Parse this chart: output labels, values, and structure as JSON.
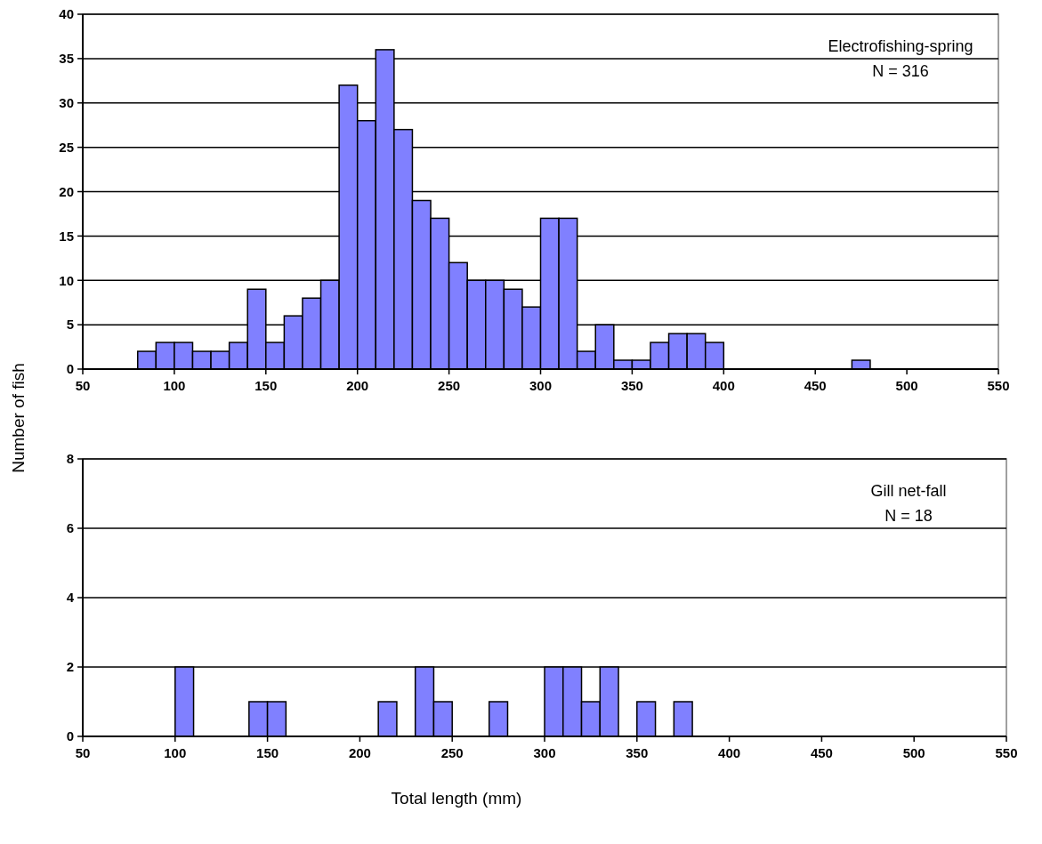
{
  "chart_data": [
    {
      "type": "histogram",
      "bins": [
        80,
        90,
        100,
        110,
        120,
        130,
        140,
        150,
        160,
        170,
        180,
        190,
        200,
        210,
        220,
        230,
        240,
        250,
        260,
        270,
        280,
        290,
        300,
        310,
        320,
        330,
        340,
        350,
        360,
        370,
        380,
        390,
        400,
        410,
        420,
        430,
        440,
        450,
        460,
        470,
        480
      ],
      "values": [
        2,
        3,
        3,
        2,
        2,
        3,
        9,
        3,
        6,
        8,
        10,
        32,
        28,
        36,
        27,
        19,
        17,
        12,
        10,
        10,
        9,
        7,
        17,
        17,
        2,
        5,
        1,
        1,
        3,
        4,
        4,
        3,
        0,
        0,
        0,
        0,
        0,
        0,
        0,
        1
      ],
      "color": "#8080ff",
      "xlim": [
        50,
        550
      ],
      "xticks": [
        50,
        100,
        150,
        200,
        250,
        300,
        350,
        400,
        450,
        500,
        550
      ],
      "ylim": [
        0,
        40
      ],
      "yticks": [
        0,
        5,
        10,
        15,
        20,
        25,
        30,
        35,
        40
      ],
      "grid": "y",
      "annotations": [
        "Electrofishing-spring",
        "N = 316"
      ]
    },
    {
      "type": "histogram",
      "bins": [
        100,
        110,
        120,
        130,
        140,
        150,
        160,
        170,
        180,
        190,
        200,
        210,
        220,
        230,
        240,
        250,
        260,
        270,
        280,
        290,
        300,
        310,
        320,
        330,
        340,
        350,
        360,
        370,
        380
      ],
      "values": [
        2,
        0,
        0,
        0,
        1,
        1,
        0,
        0,
        0,
        0,
        0,
        1,
        0,
        2,
        1,
        0,
        0,
        1,
        0,
        0,
        2,
        2,
        1,
        2,
        0,
        1,
        0,
        1
      ],
      "color": "#8080ff",
      "xlim": [
        50,
        550
      ],
      "xticks": [
        50,
        100,
        150,
        200,
        250,
        300,
        350,
        400,
        450,
        500,
        550
      ],
      "ylim": [
        0,
        8
      ],
      "yticks": [
        0,
        2,
        4,
        6,
        8
      ],
      "grid": "y",
      "xlabel": "Total length (mm)",
      "ylabel": "Number of fish",
      "annotations": [
        "Gill net-fall",
        "N = 18"
      ]
    }
  ]
}
